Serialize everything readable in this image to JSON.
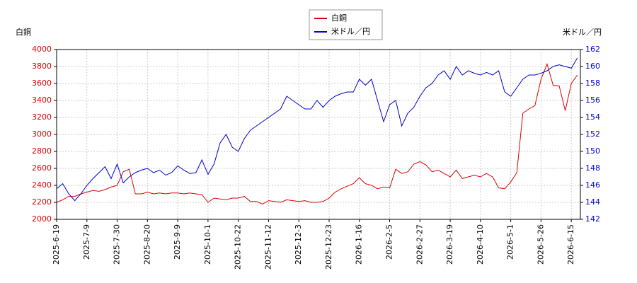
{
  "chart_data": {
    "type": "line",
    "y_label": "白銅",
    "y2_label": "米ドル／円",
    "categories": [
      "2025-6-19",
      null,
      null,
      null,
      null,
      "2025-7-9",
      null,
      null,
      null,
      null,
      "2025-7-30",
      null,
      null,
      null,
      null,
      "2025-8-20",
      null,
      null,
      null,
      null,
      "2025-9-9",
      null,
      null,
      null,
      null,
      "2025-10-1",
      null,
      null,
      null,
      null,
      "2025-10-22",
      null,
      null,
      null,
      null,
      "2025-11-12",
      null,
      null,
      null,
      null,
      "2025-12-3",
      null,
      null,
      null,
      null,
      "2025-12-23",
      null,
      null,
      null,
      null,
      "2026-1-16",
      null,
      null,
      null,
      null,
      "2026-2-5",
      null,
      null,
      null,
      null,
      "2026-2-27",
      null,
      null,
      null,
      null,
      "2026-3-19",
      null,
      null,
      null,
      null,
      "2026-4-10",
      null,
      null,
      null,
      null,
      "2026-5-1",
      null,
      null,
      null,
      null,
      "2026-5-26",
      null,
      null,
      null,
      null,
      "2026-6-15",
      null
    ],
    "series": [
      {
        "name": "白銅",
        "color": "#dd0000",
        "axis": "y",
        "values": [
          2200,
          2230,
          2270,
          2270,
          2300,
          2320,
          2340,
          2330,
          2350,
          2380,
          2400,
          2560,
          2590,
          2300,
          2300,
          2320,
          2300,
          2310,
          2300,
          2310,
          2310,
          2300,
          2310,
          2300,
          2290,
          2200,
          2250,
          2240,
          2230,
          2250,
          2250,
          2270,
          2210,
          2210,
          2180,
          2220,
          2210,
          2200,
          2230,
          2220,
          2210,
          2220,
          2200,
          2200,
          2210,
          2250,
          2320,
          2360,
          2390,
          2420,
          2490,
          2420,
          2400,
          2360,
          2380,
          2370,
          2590,
          2540,
          2560,
          2650,
          2680,
          2640,
          2560,
          2580,
          2540,
          2500,
          2580,
          2480,
          2500,
          2520,
          2500,
          2540,
          2500,
          2370,
          2360,
          2440,
          2550,
          3250,
          3300,
          3340,
          3650,
          3830,
          3580,
          3570,
          3280,
          3600,
          3700
        ]
      },
      {
        "name": "米ドル／円",
        "color": "#0000cc",
        "axis": "y2",
        "values": [
          145.6,
          146.2,
          145.0,
          144.2,
          145.0,
          146.0,
          146.8,
          147.5,
          148.2,
          146.8,
          148.5,
          146.3,
          147.0,
          147.5,
          147.8,
          148.0,
          147.5,
          147.8,
          147.2,
          147.5,
          148.3,
          147.8,
          147.4,
          147.5,
          149.0,
          147.3,
          148.5,
          151.0,
          152.0,
          150.5,
          150.0,
          151.5,
          152.5,
          153.0,
          153.5,
          154.0,
          154.5,
          155.0,
          156.5,
          156.0,
          155.5,
          155.0,
          155.0,
          156.0,
          155.2,
          156.0,
          156.5,
          156.8,
          157.0,
          157.0,
          158.5,
          157.8,
          158.5,
          156.0,
          153.5,
          155.5,
          156.0,
          153.0,
          154.5,
          155.2,
          156.5,
          157.5,
          158.0,
          159.0,
          159.5,
          158.5,
          160.0,
          159.0,
          159.5,
          159.2,
          159.0,
          159.3,
          159.0,
          159.5,
          157.0,
          156.5,
          157.5,
          158.5,
          159.0,
          159.0,
          159.2,
          159.5,
          160.0,
          160.2,
          160.0,
          159.8,
          161.0
        ]
      }
    ],
    "ylim": [
      2000,
      4000
    ],
    "yticks": [
      2000,
      2200,
      2400,
      2600,
      2800,
      3000,
      3200,
      3400,
      3600,
      3800,
      4000
    ],
    "y2lim": [
      142,
      162
    ],
    "y2ticks": [
      142,
      144,
      146,
      148,
      150,
      152,
      154,
      156,
      158,
      160,
      162
    ],
    "grid": true
  }
}
